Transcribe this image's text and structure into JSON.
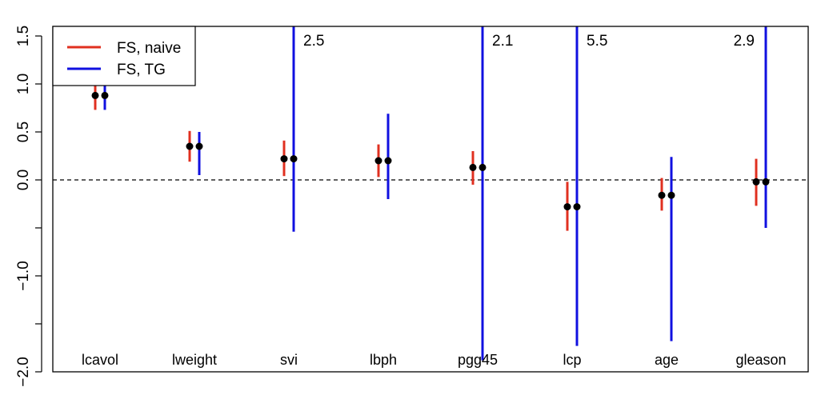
{
  "chart_data": {
    "type": "errorbar",
    "title": "",
    "xlabel": "",
    "ylabel": "",
    "ylim": [
      -2.0,
      1.6
    ],
    "yticks": [
      -2.0,
      -1.5,
      -1.0,
      -0.5,
      0.0,
      0.5,
      1.0,
      1.5
    ],
    "ytick_labels": [
      "−2.0",
      "",
      "−1.0",
      "",
      "0.0",
      "0.5",
      "1.0",
      "1.5"
    ],
    "reference_line": 0.0,
    "grid": false,
    "legend": {
      "position": "top-left"
    },
    "categories": [
      "lcavol",
      "lweight",
      "svi",
      "lbph",
      "pgg45",
      "lcp",
      "age",
      "gleason"
    ],
    "series": [
      {
        "name": "FS, naive",
        "color": "#e03020",
        "estimate": [
          0.88,
          0.35,
          0.22,
          0.2,
          0.13,
          -0.28,
          -0.16,
          -0.02
        ],
        "lower": [
          0.73,
          0.19,
          0.04,
          0.03,
          -0.05,
          -0.53,
          -0.32,
          -0.27
        ],
        "upper": [
          1.03,
          0.51,
          0.41,
          0.37,
          0.3,
          -0.02,
          0.02,
          0.22
        ]
      },
      {
        "name": "FS, TG",
        "color": "#1010e0",
        "estimate": [
          0.88,
          0.35,
          0.22,
          0.2,
          0.13,
          -0.28,
          -0.16,
          -0.02
        ],
        "lower": [
          0.73,
          0.05,
          -0.54,
          -0.2,
          -1.88,
          -1.73,
          -1.68,
          -0.5
        ],
        "upper": [
          1.03,
          0.5,
          1.62,
          0.69,
          1.62,
          1.62,
          0.24,
          1.62
        ]
      }
    ],
    "annotations": [
      {
        "category": "svi",
        "text": "2.5"
      },
      {
        "category": "pgg45",
        "text": "2.1"
      },
      {
        "category": "lcp",
        "text": "5.5"
      },
      {
        "category": "gleason",
        "text": "2.9"
      }
    ]
  }
}
